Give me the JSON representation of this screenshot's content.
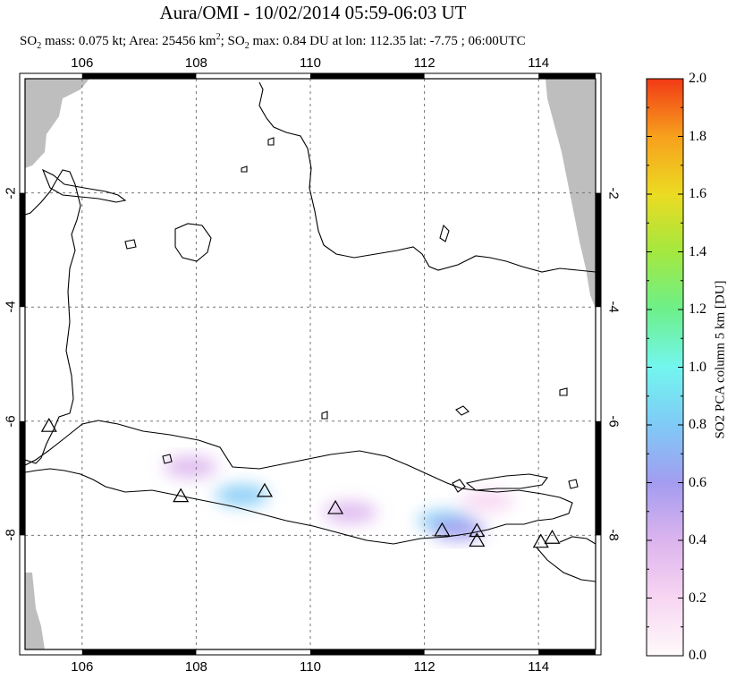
{
  "header": {
    "title": "Aura/OMI - 10/02/2014 05:59-06:03 UT",
    "sub_pre": "SO",
    "sub_idx1": "2",
    "sub_mid1": " mass: 0.075 kt; Area: 25456 km",
    "sub_sup": "2",
    "sub_mid2": "; SO",
    "sub_idx2": "2",
    "sub_post": " max: 0.84 DU at lon: 112.35 lat: -7.75 ; 06:00UTC"
  },
  "chart_data": {
    "type": "heatmap",
    "title": "Aura/OMI - 10/02/2014 05:59-06:03 UT",
    "xlim": [
      105,
      115
    ],
    "ylim": [
      -10,
      0
    ],
    "x_ticks": [
      "106",
      "108",
      "110",
      "112",
      "114"
    ],
    "y_ticks": [
      "-2",
      "-4",
      "-6",
      "-8"
    ],
    "grid": true,
    "colorbar": {
      "label": "SO2 PCA column 5 km [DU]",
      "range": [
        0,
        2
      ],
      "ticks": [
        "0.0",
        "0.2",
        "0.4",
        "0.6",
        "0.8",
        "1.0",
        "1.2",
        "1.4",
        "1.6",
        "1.8",
        "2.0"
      ]
    },
    "so2_patches": [
      {
        "lon": 112.35,
        "lat": -7.75,
        "du": 0.84
      },
      {
        "lon": 108.8,
        "lat": -7.3,
        "du": 0.7
      },
      {
        "lon": 107.9,
        "lat": -6.8,
        "du": 0.4
      },
      {
        "lon": 112.6,
        "lat": -7.9,
        "du": 0.55
      },
      {
        "lon": 110.7,
        "lat": -7.6,
        "du": 0.3
      },
      {
        "lon": 113.1,
        "lat": -7.4,
        "du": 0.25
      }
    ],
    "volcanoes": [
      {
        "lon": 105.42,
        "lat": -6.1
      },
      {
        "lon": 107.73,
        "lat": -7.33
      },
      {
        "lon": 109.2,
        "lat": -7.24
      },
      {
        "lon": 110.44,
        "lat": -7.54
      },
      {
        "lon": 112.31,
        "lat": -7.93
      },
      {
        "lon": 112.92,
        "lat": -7.94
      },
      {
        "lon": 112.92,
        "lat": -8.11
      },
      {
        "lon": 114.04,
        "lat": -8.13
      },
      {
        "lon": 114.24,
        "lat": -8.06
      }
    ]
  },
  "colors": {
    "no_data": "#bebebe",
    "grid": "#777777",
    "coast": "#000000",
    "colormap": [
      "#fffafa",
      "#f7d5f2",
      "#dcb4ee",
      "#a39cf0",
      "#7fcaf6",
      "#73f6ef",
      "#6df08a",
      "#a4e83f",
      "#ecdb22",
      "#f7a01c",
      "#f23a16"
    ]
  }
}
